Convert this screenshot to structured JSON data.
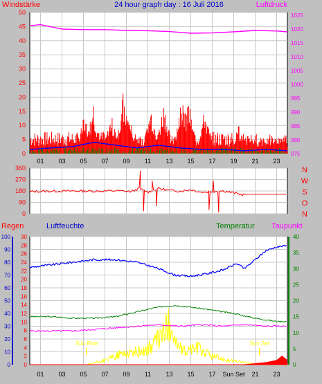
{
  "title": "24 hour graph day : 16 Juli 2016",
  "labels": {
    "wind": "Windstärke",
    "pressure": "Luftdruck",
    "rain": "Regen",
    "humidity": "Luftfeuchte",
    "temperature": "Temperatur",
    "dewpoint": "Taupunkt",
    "sunrise": "Sun Rise",
    "sunset": "Sun Set"
  },
  "colors": {
    "background": "#c0c0c0",
    "plot": "#ffffff",
    "grid": "#c8c8c8",
    "wind": "#ff0000",
    "wind_avg": "#0000ff",
    "wind_gust_low": "#008800",
    "pressure": "#ff00ff",
    "direction": "#ff0000",
    "humidity": "#0000ff",
    "temperature": "#008000",
    "dewpoint": "#ff00ff",
    "solar": "#ffff00",
    "rain": "#ff0000",
    "sun": "#ffff00"
  },
  "chart_data": [
    {
      "type": "line",
      "name": "wind-pressure",
      "x_ticks": [
        "01",
        "03",
        "05",
        "07",
        "09",
        "11",
        "13",
        "15",
        "17",
        "19",
        "21",
        "23"
      ],
      "xlim": [
        0,
        24
      ],
      "ylim": [
        0,
        50
      ],
      "y_ticks": [
        "0",
        "5",
        "10",
        "15",
        "20",
        "25",
        "30",
        "35",
        "40",
        "45",
        "50"
      ],
      "y2lim": [
        975,
        1026
      ],
      "y2_ticks": [
        "975",
        "980",
        "985",
        "990",
        "995",
        "1000",
        "1005",
        "1010",
        "1015",
        "1020",
        "1025"
      ],
      "wind_gust_baseline": 6,
      "wind_gust_peaks": [
        {
          "x": 5.1,
          "y": 14
        },
        {
          "x": 5.9,
          "y": 18
        },
        {
          "x": 7.6,
          "y": 14
        },
        {
          "x": 8.7,
          "y": 22
        },
        {
          "x": 9.2,
          "y": 15
        },
        {
          "x": 11.3,
          "y": 17
        },
        {
          "x": 12.5,
          "y": 19
        },
        {
          "x": 14.2,
          "y": 23
        },
        {
          "x": 14.8,
          "y": 19
        },
        {
          "x": 16.3,
          "y": 16
        },
        {
          "x": 19.6,
          "y": 12
        },
        {
          "x": 23.4,
          "y": 7
        }
      ],
      "wind_avg": [
        {
          "x": 0,
          "y": 1.5
        },
        {
          "x": 2,
          "y": 2
        },
        {
          "x": 4,
          "y": 2.5
        },
        {
          "x": 6,
          "y": 4
        },
        {
          "x": 8,
          "y": 3
        },
        {
          "x": 10,
          "y": 2
        },
        {
          "x": 12,
          "y": 3
        },
        {
          "x": 14,
          "y": 2
        },
        {
          "x": 16,
          "y": 1.5
        },
        {
          "x": 18,
          "y": 1.5
        },
        {
          "x": 20,
          "y": 1
        },
        {
          "x": 22,
          "y": 1.5
        },
        {
          "x": 24,
          "y": 1
        }
      ],
      "pressure": [
        {
          "x": 0,
          "y": 1021.2
        },
        {
          "x": 1,
          "y": 1021.6
        },
        {
          "x": 3,
          "y": 1020.0
        },
        {
          "x": 5,
          "y": 1019.8
        },
        {
          "x": 7,
          "y": 1019.8
        },
        {
          "x": 9,
          "y": 1019.5
        },
        {
          "x": 11,
          "y": 1019.4
        },
        {
          "x": 13,
          "y": 1019.1
        },
        {
          "x": 15,
          "y": 1018.5
        },
        {
          "x": 17,
          "y": 1018.6
        },
        {
          "x": 19,
          "y": 1019.0
        },
        {
          "x": 21,
          "y": 1019.5
        },
        {
          "x": 23,
          "y": 1019.3
        },
        {
          "x": 24,
          "y": 1019.0
        }
      ]
    },
    {
      "type": "line",
      "name": "wind-direction",
      "ylim": [
        0,
        360
      ],
      "y_ticks": [
        "0",
        "90",
        "180",
        "270",
        "360"
      ],
      "right_labels": [
        "N",
        "W",
        "S",
        "O",
        "N"
      ],
      "direction": [
        {
          "x": 0,
          "y": 175
        },
        {
          "x": 2,
          "y": 178
        },
        {
          "x": 4,
          "y": 180
        },
        {
          "x": 6,
          "y": 178
        },
        {
          "x": 8,
          "y": 182
        },
        {
          "x": 9.5,
          "y": 175
        },
        {
          "x": 10.2,
          "y": 200
        },
        {
          "x": 11,
          "y": 170
        },
        {
          "x": 12,
          "y": 200
        },
        {
          "x": 13,
          "y": 185
        },
        {
          "x": 14,
          "y": 178
        },
        {
          "x": 15,
          "y": 190
        },
        {
          "x": 16,
          "y": 170
        },
        {
          "x": 17,
          "y": 175
        },
        {
          "x": 18,
          "y": 180
        },
        {
          "x": 19,
          "y": 165
        },
        {
          "x": 19.8,
          "y": 150
        },
        {
          "x": 20.2,
          "y": 155
        },
        {
          "x": 24,
          "y": 155
        }
      ],
      "direction_spikes": [
        {
          "x": 10.3,
          "y": 340
        },
        {
          "x": 10.6,
          "y": 20
        },
        {
          "x": 11.4,
          "y": 260
        },
        {
          "x": 11.8,
          "y": 60
        },
        {
          "x": 16.7,
          "y": 30
        },
        {
          "x": 17.1,
          "y": 260
        },
        {
          "x": 17.6,
          "y": 10
        }
      ]
    },
    {
      "type": "line",
      "name": "rain-humidity-temperature",
      "x_ticks": [
        "01",
        "03",
        "05",
        "07",
        "09",
        "11",
        "13",
        "15",
        "17",
        "Sun Set",
        "21",
        "23"
      ],
      "rain_ticks": [
        "0",
        "2",
        "4",
        "6",
        "8",
        "10",
        "12",
        "14",
        "16",
        "18",
        "20",
        "22",
        "24",
        "26",
        "28",
        "30"
      ],
      "humidity_ticks": [
        "0",
        "10",
        "20",
        "30",
        "40",
        "50",
        "60",
        "70",
        "80",
        "90",
        "100"
      ],
      "temperature_ticks": [
        "0",
        "5",
        "10",
        "15",
        "20",
        "25",
        "30",
        "35",
        "40"
      ],
      "sunrise_x": 5.3,
      "sunset_x": 21.4,
      "humidity": [
        {
          "x": 0,
          "y": 76
        },
        {
          "x": 2,
          "y": 78
        },
        {
          "x": 4,
          "y": 80
        },
        {
          "x": 6,
          "y": 82
        },
        {
          "x": 8,
          "y": 82
        },
        {
          "x": 10,
          "y": 80
        },
        {
          "x": 12,
          "y": 75
        },
        {
          "x": 13.5,
          "y": 70
        },
        {
          "x": 15,
          "y": 69
        },
        {
          "x": 16.5,
          "y": 71
        },
        {
          "x": 18,
          "y": 74
        },
        {
          "x": 19.3,
          "y": 79
        },
        {
          "x": 20,
          "y": 75
        },
        {
          "x": 21,
          "y": 82
        },
        {
          "x": 22,
          "y": 89
        },
        {
          "x": 23,
          "y": 92
        },
        {
          "x": 24,
          "y": 93
        }
      ],
      "temperature": [
        {
          "x": 0,
          "y": 15
        },
        {
          "x": 2,
          "y": 15
        },
        {
          "x": 4,
          "y": 14.5
        },
        {
          "x": 6,
          "y": 14.5
        },
        {
          "x": 8,
          "y": 15
        },
        {
          "x": 10,
          "y": 16.5
        },
        {
          "x": 12,
          "y": 18
        },
        {
          "x": 13.5,
          "y": 18.5
        },
        {
          "x": 15,
          "y": 18
        },
        {
          "x": 17,
          "y": 17
        },
        {
          "x": 19,
          "y": 16
        },
        {
          "x": 21,
          "y": 14.5
        },
        {
          "x": 23,
          "y": 13.5
        },
        {
          "x": 24,
          "y": 13.5
        }
      ],
      "dewpoint": [
        {
          "x": 0,
          "y": 10.5
        },
        {
          "x": 4,
          "y": 10.5
        },
        {
          "x": 6,
          "y": 11
        },
        {
          "x": 8,
          "y": 11.5
        },
        {
          "x": 10,
          "y": 12
        },
        {
          "x": 12,
          "y": 12.5
        },
        {
          "x": 14,
          "y": 12
        },
        {
          "x": 16,
          "y": 12.5
        },
        {
          "x": 18,
          "y": 12
        },
        {
          "x": 20,
          "y": 12.5
        },
        {
          "x": 22,
          "y": 12
        },
        {
          "x": 24,
          "y": 12
        }
      ],
      "solar": [
        {
          "x": 5.3,
          "y": 0
        },
        {
          "x": 7,
          "y": 1
        },
        {
          "x": 8.5,
          "y": 2.5
        },
        {
          "x": 10,
          "y": 3
        },
        {
          "x": 11,
          "y": 3.5
        },
        {
          "x": 12,
          "y": 6
        },
        {
          "x": 12.6,
          "y": 8
        },
        {
          "x": 13.1,
          "y": 10
        },
        {
          "x": 13.6,
          "y": 5
        },
        {
          "x": 14.3,
          "y": 3
        },
        {
          "x": 15.5,
          "y": 4
        },
        {
          "x": 17,
          "y": 2
        },
        {
          "x": 18.5,
          "y": 1
        },
        {
          "x": 20,
          "y": 0.5
        },
        {
          "x": 21.4,
          "y": 0
        }
      ],
      "rain": [
        {
          "x": 0,
          "y": 0
        },
        {
          "x": 20,
          "y": 0
        },
        {
          "x": 22,
          "y": 0.5
        },
        {
          "x": 23,
          "y": 1
        },
        {
          "x": 23.5,
          "y": 2
        },
        {
          "x": 24,
          "y": 1
        }
      ]
    }
  ]
}
